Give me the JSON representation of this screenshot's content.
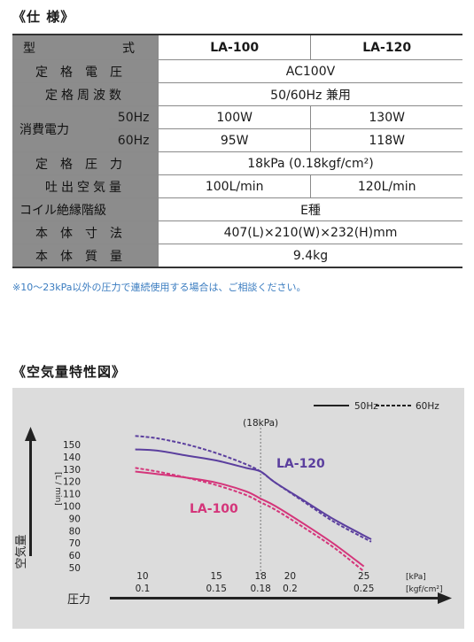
{
  "spec": {
    "title": "《仕 様》",
    "rows": {
      "model": {
        "label": "型　　　式",
        "a": "LA-100",
        "b": "LA-120"
      },
      "voltage": {
        "label": "定格電圧",
        "value": "AC100V"
      },
      "frequency": {
        "label": "定格周波数",
        "value": "50/60Hz 兼用"
      },
      "power": {
        "label": "消費電力",
        "sub50": "50Hz",
        "sub60": "60Hz",
        "a50": "100W",
        "b50": "130W",
        "a60": "95W",
        "b60": "118W"
      },
      "pressure": {
        "label": "定格圧力",
        "value": "18kPa (0.18kgf/cm²)"
      },
      "airflow": {
        "label": "吐出空気量",
        "a": "100L/min",
        "b": "120L/min"
      },
      "insulation": {
        "label": "コイル絶縁階級",
        "value": "E種"
      },
      "dimensions": {
        "label": "本体寸法",
        "value": "407(L)×210(W)×232(H)mm"
      },
      "weight": {
        "label": "本体質量",
        "value": "9.4kg"
      }
    },
    "note": "※10〜23kPa以外の圧力で連続使用する場合は、ご相談ください。"
  },
  "chart_title": "《空気量特性図》",
  "chart_data": {
    "type": "line",
    "title": "《空気量特性図》",
    "xlabel": "圧力",
    "ylabel": "空気量",
    "y_unit": "[L / min]",
    "x_unit_kpa": "[kPa]",
    "x_unit_kgf": "[kgf/cm²]",
    "xlim": [
      7,
      27
    ],
    "ylim": [
      50,
      155
    ],
    "x_ticks": [
      {
        "kpa": 10,
        "label1": "10",
        "label2": "0.1"
      },
      {
        "kpa": 15,
        "label1": "15",
        "label2": "0.15"
      },
      {
        "kpa": 18,
        "label1": "18",
        "label2": "0.18"
      },
      {
        "kpa": 20,
        "label1": "20",
        "label2": "0.2"
      },
      {
        "kpa": 25,
        "label1": "25",
        "label2": "0.25"
      }
    ],
    "y_ticks": [
      50,
      60,
      70,
      80,
      90,
      100,
      110,
      120,
      130,
      140,
      150
    ],
    "reference_line": {
      "x": 18,
      "label": "(18kPa)"
    },
    "legend": {
      "solid": "50Hz",
      "dashed": "60Hz",
      "position": "top-right"
    },
    "series": [
      {
        "name": "LA-120",
        "freq": "50Hz",
        "color": "#5b3f9e",
        "dashed": false,
        "x": [
          9.5,
          11,
          13,
          15,
          17,
          18,
          19,
          21,
          23,
          25.5
        ],
        "y": [
          146,
          145,
          141,
          137,
          131,
          128,
          119,
          104,
          89,
          73
        ]
      },
      {
        "name": "LA-120",
        "freq": "60Hz",
        "color": "#5b3f9e",
        "dashed": true,
        "x": [
          9.5,
          11,
          13,
          15,
          17,
          18,
          19,
          21,
          23,
          25.5
        ],
        "y": [
          157,
          155,
          150,
          143,
          134,
          128,
          119,
          103,
          87,
          71
        ]
      },
      {
        "name": "LA-100",
        "freq": "50Hz",
        "color": "#d4357a",
        "dashed": false,
        "x": [
          9.5,
          11,
          13,
          15,
          17,
          18,
          19,
          21,
          23,
          25
        ],
        "y": [
          128,
          126,
          123,
          119,
          112,
          106,
          100,
          85,
          69,
          51
        ]
      },
      {
        "name": "LA-100",
        "freq": "60Hz",
        "color": "#d4357a",
        "dashed": true,
        "x": [
          9.5,
          11,
          13,
          15,
          17,
          18,
          19,
          21,
          23,
          25
        ],
        "y": [
          131,
          128,
          123,
          117,
          109,
          103,
          97,
          82,
          66,
          47
        ]
      }
    ],
    "series_labels": [
      {
        "name": "LA-120",
        "color": "#5b3f9e"
      },
      {
        "name": "LA-100",
        "color": "#d4357a"
      }
    ]
  }
}
